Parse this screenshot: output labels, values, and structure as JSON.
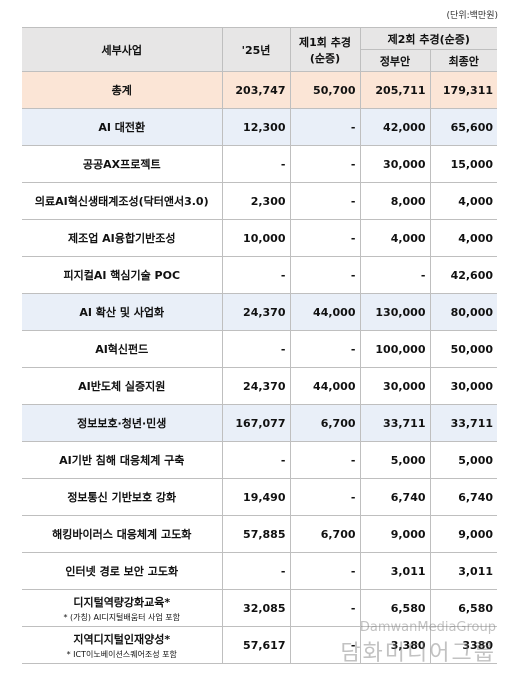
{
  "unit": "(단위:백만원)",
  "header": {
    "name": "세부사업",
    "y25": "'25년",
    "first": [
      "제1회 추경",
      "(순증)"
    ],
    "second": "제2회 추경(순증)",
    "gov": "정부안",
    "final": "최종안"
  },
  "table": {
    "rows": [
      {
        "kind": "total",
        "cells": [
          "총계",
          "203,747",
          "50,700",
          "205,711",
          "179,311"
        ]
      },
      {
        "kind": "group",
        "cells": [
          "AI 대전환",
          "12,300",
          "-",
          "42,000",
          "65,600"
        ]
      },
      {
        "kind": "item",
        "cells": [
          "공공AX프로젝트",
          "-",
          "-",
          "30,000",
          "15,000"
        ]
      },
      {
        "kind": "item",
        "cells": [
          "의료AI혁신생태계조성(닥터앤서3.0)",
          "2,300",
          "-",
          "8,000",
          "4,000"
        ]
      },
      {
        "kind": "item",
        "cells": [
          "제조업 AI융합기반조성",
          "10,000",
          "-",
          "4,000",
          "4,000"
        ]
      },
      {
        "kind": "item",
        "cells": [
          "피지컬AI 핵심기술 POC",
          "-",
          "-",
          "-",
          "42,600"
        ]
      },
      {
        "kind": "group",
        "cells": [
          "AI 확산 및 사업화",
          "24,370",
          "44,000",
          "130,000",
          "80,000"
        ]
      },
      {
        "kind": "item",
        "cells": [
          "AI혁신펀드",
          "-",
          "-",
          "100,000",
          "50,000"
        ]
      },
      {
        "kind": "item",
        "cells": [
          "AI반도체 실증지원",
          "24,370",
          "44,000",
          "30,000",
          "30,000"
        ]
      },
      {
        "kind": "group",
        "cells": [
          "정보보호·청년·민생",
          "167,077",
          "6,700",
          "33,711",
          "33,711"
        ]
      },
      {
        "kind": "item",
        "cells": [
          "AI기반 침해 대응체계 구축",
          "-",
          "-",
          "5,000",
          "5,000"
        ]
      },
      {
        "kind": "item",
        "cells": [
          "정보통신 기반보호 강화",
          "19,490",
          "-",
          "6,740",
          "6,740"
        ]
      },
      {
        "kind": "item",
        "cells": [
          "해킹바이러스 대응체계 고도화",
          "57,885",
          "6,700",
          "9,000",
          "9,000"
        ]
      },
      {
        "kind": "item",
        "cells": [
          "인터넷 경로 보안 고도화",
          "-",
          "-",
          "3,011",
          "3,011"
        ]
      },
      {
        "kind": "item",
        "cells": [
          "디지털역량강화교육*",
          "32,085",
          "-",
          "6,580",
          "6,580"
        ],
        "note": "* (가칭) AI디지털배움터 사업 포함"
      },
      {
        "kind": "item",
        "cells": [
          "지역디지털인재양성*",
          "57,617",
          "-",
          "3,380",
          "3380"
        ],
        "note": "* ICT이노베이션스퀘어조성 포함"
      }
    ]
  },
  "watermark": {
    "en": "DamwanMediaGroup",
    "ko": "담화미디어그룹"
  }
}
